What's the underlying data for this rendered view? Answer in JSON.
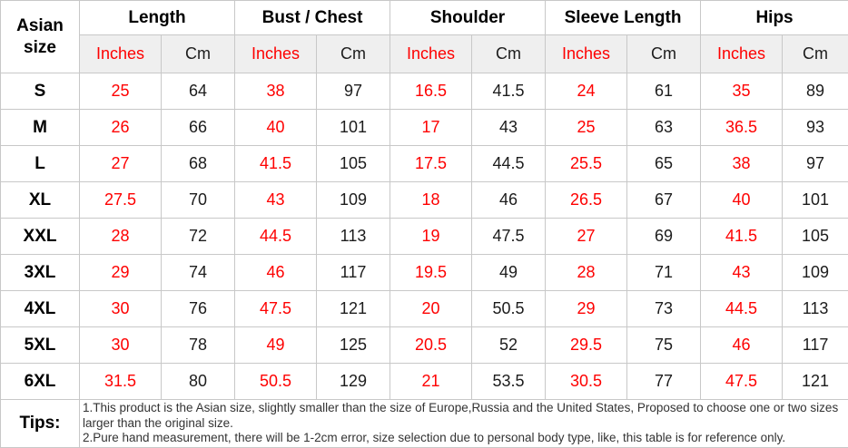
{
  "table": {
    "corner_header": "Asian size",
    "measure_headers": [
      {
        "label": "Length"
      },
      {
        "label": "Bust / Chest"
      },
      {
        "label": "Shoulder"
      },
      {
        "label": "Sleeve Length"
      },
      {
        "label": "Hips"
      }
    ],
    "units": {
      "inches": "Inches",
      "cm": "Cm"
    },
    "column_keys": [
      "length-inches",
      "length-cm",
      "bust-chest-inches",
      "bust-chest-cm",
      "shoulder-inches",
      "shoulder-cm",
      "sleeve-length-inches",
      "sleeve-length-cm",
      "hips-inches",
      "hips-cm"
    ],
    "rows": [
      {
        "size": "S",
        "values": [
          "25",
          "64",
          "38",
          "97",
          "16.5",
          "41.5",
          "24",
          "61",
          "35",
          "89"
        ]
      },
      {
        "size": "M",
        "values": [
          "26",
          "66",
          "40",
          "101",
          "17",
          "43",
          "25",
          "63",
          "36.5",
          "93"
        ]
      },
      {
        "size": "L",
        "values": [
          "27",
          "68",
          "41.5",
          "105",
          "17.5",
          "44.5",
          "25.5",
          "65",
          "38",
          "97"
        ]
      },
      {
        "size": "XL",
        "values": [
          "27.5",
          "70",
          "43",
          "109",
          "18",
          "46",
          "26.5",
          "67",
          "40",
          "101"
        ]
      },
      {
        "size": "XXL",
        "values": [
          "28",
          "72",
          "44.5",
          "113",
          "19",
          "47.5",
          "27",
          "69",
          "41.5",
          "105"
        ]
      },
      {
        "size": "3XL",
        "values": [
          "29",
          "74",
          "46",
          "117",
          "19.5",
          "49",
          "28",
          "71",
          "43",
          "109"
        ]
      },
      {
        "size": "4XL",
        "values": [
          "30",
          "76",
          "47.5",
          "121",
          "20",
          "50.5",
          "29",
          "73",
          "44.5",
          "113"
        ]
      },
      {
        "size": "5XL",
        "values": [
          "30",
          "78",
          "49",
          "125",
          "20.5",
          "52",
          "29.5",
          "75",
          "46",
          "117"
        ]
      },
      {
        "size": "6XL",
        "values": [
          "31.5",
          "80",
          "50.5",
          "129",
          "21",
          "53.5",
          "30.5",
          "77",
          "47.5",
          "121"
        ]
      }
    ],
    "tips": {
      "label": "Tips:",
      "notes": [
        "1.This product is the Asian size, slightly smaller than the size of Europe,Russia and the United States, Proposed to choose one or two sizes larger than the original size.",
        "2.Pure hand measurement, there will be 1-2cm error, size selection due to personal body type, like, this table is for reference only."
      ]
    }
  },
  "colors": {
    "accent_red": "#fe0000",
    "text_black": "#1c1c1c",
    "header_bg": "#efefef",
    "border": "#c8c8c8"
  },
  "chart_data": {
    "type": "table",
    "columns": [
      "Asian size",
      "Length Inches",
      "Length Cm",
      "Bust / Chest Inches",
      "Bust / Chest Cm",
      "Shoulder Inches",
      "Shoulder Cm",
      "Sleeve Length Inches",
      "Sleeve Length Cm",
      "Hips Inches",
      "Hips Cm"
    ],
    "rows": [
      [
        "S",
        25,
        64,
        38,
        97,
        16.5,
        41.5,
        24,
        61,
        35,
        89
      ],
      [
        "M",
        26,
        66,
        40,
        101,
        17,
        43,
        25,
        63,
        36.5,
        93
      ],
      [
        "L",
        27,
        68,
        41.5,
        105,
        17.5,
        44.5,
        25.5,
        65,
        38,
        97
      ],
      [
        "XL",
        27.5,
        70,
        43,
        109,
        18,
        46,
        26.5,
        67,
        40,
        101
      ],
      [
        "XXL",
        28,
        72,
        44.5,
        113,
        19,
        47.5,
        27,
        69,
        41.5,
        105
      ],
      [
        "3XL",
        29,
        74,
        46,
        117,
        19.5,
        49,
        28,
        71,
        43,
        109
      ],
      [
        "4XL",
        30,
        76,
        47.5,
        121,
        20,
        50.5,
        29,
        73,
        44.5,
        113
      ],
      [
        "5XL",
        30,
        78,
        49,
        125,
        20.5,
        52,
        29.5,
        75,
        46,
        117
      ],
      [
        "6XL",
        31.5,
        80,
        50.5,
        129,
        21,
        53.5,
        30.5,
        77,
        47.5,
        121
      ]
    ],
    "annotations": [
      "1.This product is the Asian size, slightly smaller than the size of Europe,Russia and the United States, Proposed to choose one or two sizes larger than the original size.",
      "2.Pure hand measurement, there will be 1-2cm error, size selection due to personal body type, like, this table is for reference only."
    ]
  }
}
